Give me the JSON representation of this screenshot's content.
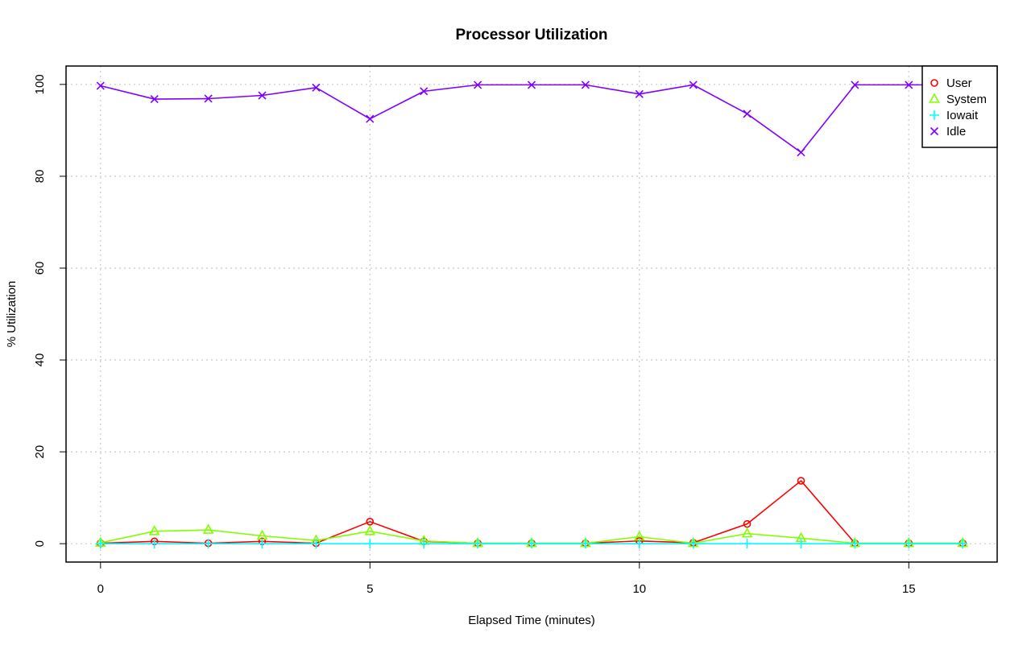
{
  "chart_data": {
    "type": "line",
    "title": "Processor Utilization",
    "xlabel": "Elapsed Time (minutes)",
    "ylabel": "% Utilization",
    "xlim": [
      -0.64,
      16.64
    ],
    "ylim": [
      -4,
      104
    ],
    "xticks": [
      0,
      5,
      10,
      15
    ],
    "yticks": [
      0,
      20,
      40,
      60,
      80,
      100
    ],
    "grid": true,
    "legend_position": "top-right",
    "x": [
      0,
      1,
      2,
      3,
      4,
      5,
      6,
      7,
      8,
      9,
      10,
      11,
      12,
      13,
      14,
      15,
      16
    ],
    "series": [
      {
        "name": "User",
        "color": "#ff0000",
        "marker": "circle",
        "values": [
          0.1,
          0.5,
          0.1,
          0.5,
          0.1,
          4.8,
          0.5,
          0.1,
          0.1,
          0.1,
          0.6,
          0.2,
          4.3,
          13.7,
          0.1,
          0.1,
          0.1
        ]
      },
      {
        "name": "System",
        "color": "#80ff00",
        "marker": "triangle",
        "values": [
          0.2,
          2.7,
          3.0,
          1.7,
          0.7,
          2.7,
          0.6,
          0.1,
          0.1,
          0.1,
          1.5,
          0.1,
          2.2,
          1.2,
          0.1,
          0.1,
          0.1
        ]
      },
      {
        "name": "Iowait",
        "color": "#00ffff",
        "marker": "plus",
        "values": [
          0.0,
          0.0,
          0.0,
          0.0,
          0.0,
          0.0,
          0.0,
          0.0,
          0.0,
          0.0,
          0.0,
          0.0,
          0.0,
          0.0,
          0.0,
          0.0,
          0.0
        ]
      },
      {
        "name": "Idle",
        "color": "#8000ff",
        "marker": "x",
        "values": [
          99.7,
          96.8,
          96.9,
          97.6,
          99.3,
          92.5,
          98.5,
          99.9,
          99.9,
          99.9,
          97.9,
          99.9,
          93.6,
          85.2,
          99.9,
          99.9,
          99.9
        ]
      }
    ]
  }
}
